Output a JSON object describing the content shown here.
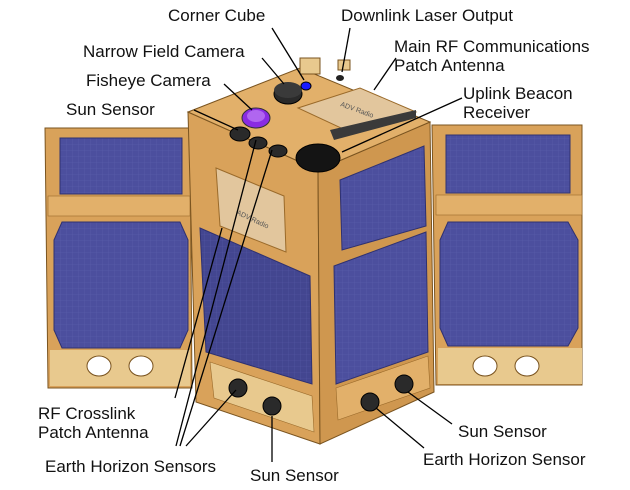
{
  "labels": {
    "corner_cube": "Corner Cube",
    "downlink_laser": "Downlink Laser Output",
    "main_rf_line1": "Main RF Communications",
    "main_rf_line2": "Patch Antenna",
    "narrow_field_camera": "Narrow Field Camera",
    "fisheye_camera": "Fisheye Camera",
    "sun_sensor_top": "Sun Sensor",
    "uplink_line1": "Uplink Beacon",
    "uplink_line2": "Receiver",
    "rf_crosslink_line1": "RF Crosslink",
    "rf_crosslink_line2": "Patch Antenna",
    "earth_horizon_sensors": "Earth Horizon Sensors",
    "sun_sensor_bottom": "Sun Sensor",
    "sun_sensor_right": "Sun Sensor",
    "earth_horizon_sensor": "Earth Horizon Sensor"
  },
  "panel_text": {
    "top_radio": "ADV Radio",
    "side_radio": "ADV Radio"
  },
  "colors": {
    "frame": "#d9a25a",
    "frame_dark": "#b8833f",
    "panel": "#e2c69d",
    "solar": "#4c4f9e",
    "solar_dark": "#3a3c80",
    "lens_purple": "#8a2be2",
    "corner_cube": "#1a1aff"
  }
}
